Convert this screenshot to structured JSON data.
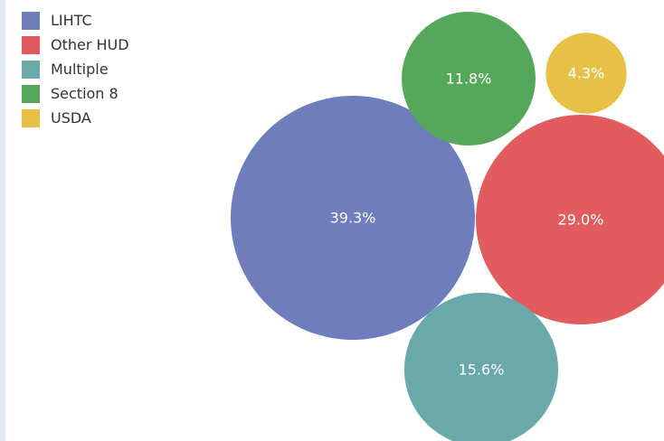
{
  "colors": {
    "LIHTC": "#6e7dbb",
    "Other HUD": "#e05c5f",
    "Multiple": "#6aa9a9",
    "Section 8": "#55a859",
    "USDA": "#e7c146"
  },
  "legend": {
    "items": [
      {
        "label": "LIHTC"
      },
      {
        "label": "Other HUD"
      },
      {
        "label": "Multiple"
      },
      {
        "label": "Section 8"
      },
      {
        "label": "USDA"
      }
    ]
  },
  "chart_data": {
    "type": "bubble",
    "categories": [
      "LIHTC",
      "Other HUD",
      "Multiple",
      "Section 8",
      "USDA"
    ],
    "values": [
      39.3,
      29.0,
      15.6,
      11.8,
      4.3
    ],
    "labels": [
      "39.3%",
      "29.0%",
      "15.6%",
      "11.8%",
      "4.3%"
    ],
    "unit": "%",
    "legend_position": "top-left"
  }
}
